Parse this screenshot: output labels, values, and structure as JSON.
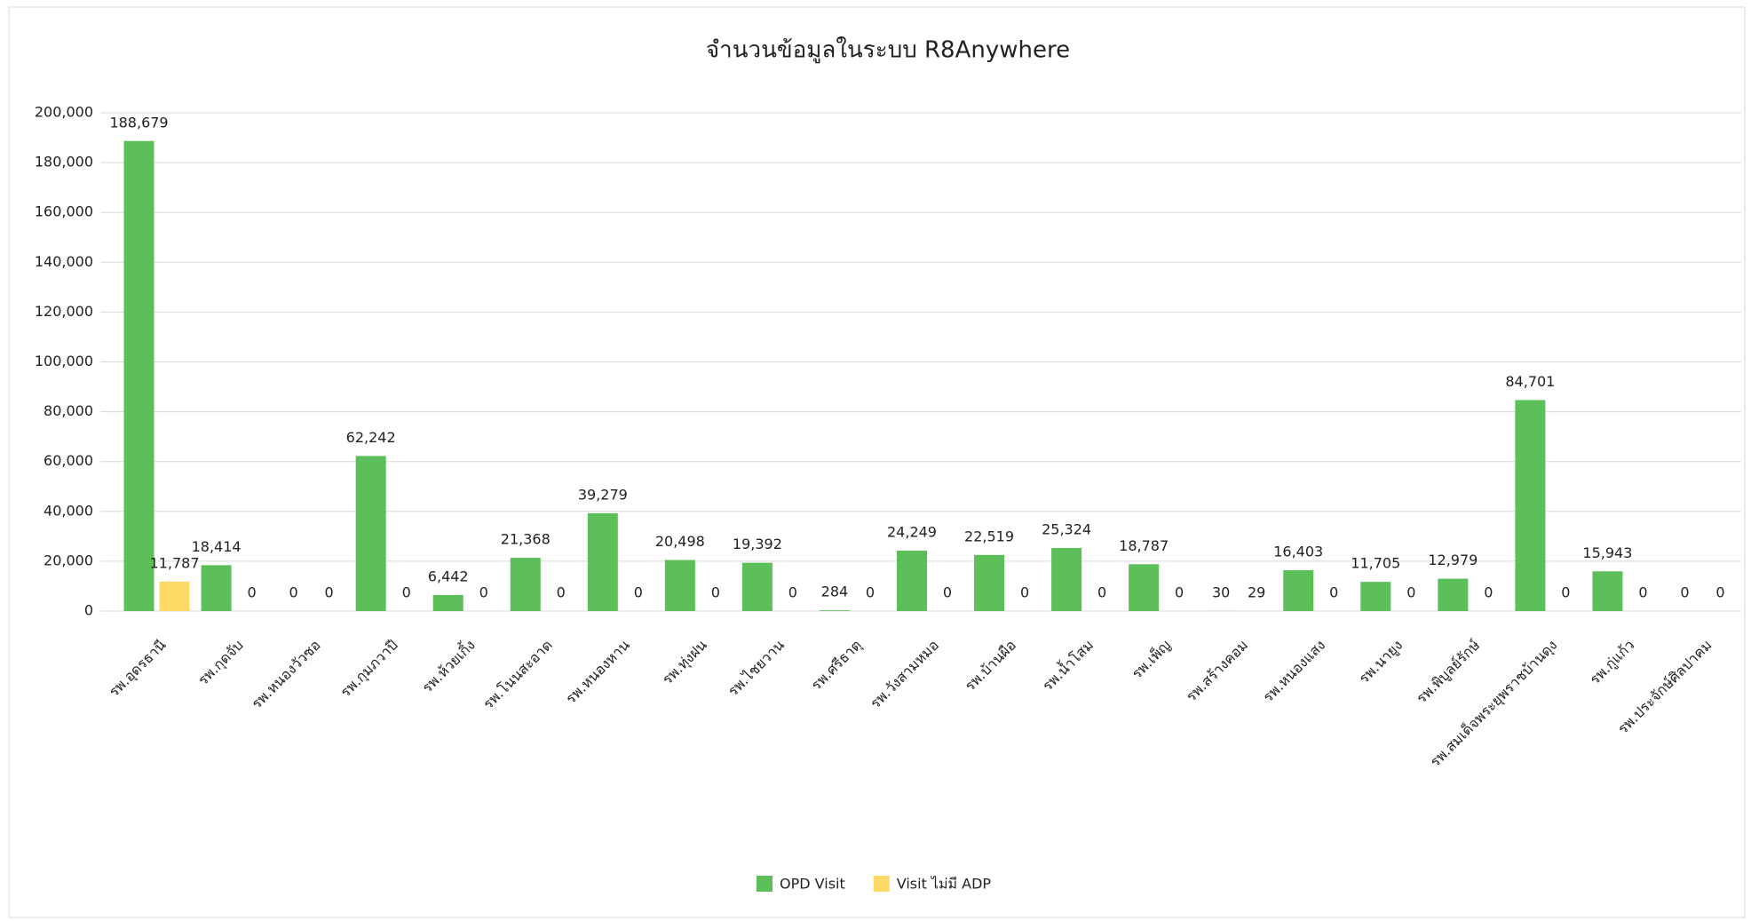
{
  "chart_data": {
    "type": "bar",
    "title": "จำนวนข้อมูลในระบบ R8Anywhere",
    "categories": [
      "รพ.อุดรธานี",
      "รพ.กุดจับ",
      "รพ.หนองวัวซอ",
      "รพ.กุมภวาปี",
      "รพ.ห้วยเกิ้ง",
      "รพ.โนนสะอาด",
      "รพ.หนองหาน",
      "รพ.ทุ่งฝน",
      "รพ.ไชยวาน",
      "รพ.ศรีธาตุ",
      "รพ.วังสามหมอ",
      "รพ.บ้านผือ",
      "รพ.น้ำโสม",
      "รพ.เพ็ญ",
      "รพ.สร้างคอม",
      "รพ.หนองแสง",
      "รพ.นายูง",
      "รพ.พิบูลย์รักษ์",
      "รพ.สมเด็จพระยุพราชบ้านดุง",
      "รพ.กู่แก้ว",
      "รพ.ประจักษ์ศิลปาคม"
    ],
    "series": [
      {
        "name": "OPD Visit",
        "color": "#5cbf5a",
        "values": [
          188679,
          18414,
          0,
          62242,
          6442,
          21368,
          39279,
          20498,
          19392,
          284,
          24249,
          22519,
          25324,
          18787,
          30,
          16403,
          11705,
          12979,
          84701,
          15943,
          0
        ],
        "value_labels": [
          "188,679",
          "18,414",
          "0",
          "62,242",
          "6,442",
          "21,368",
          "39,279",
          "20,498",
          "19,392",
          "284",
          "24,249",
          "22,519",
          "25,324",
          "18,787",
          "30",
          "16,403",
          "11,705",
          "12,979",
          "84,701",
          "15,943",
          "0"
        ]
      },
      {
        "name": "Visit ไม่มี ADP",
        "color": "#ffd966",
        "values": [
          11787,
          0,
          0,
          0,
          0,
          0,
          0,
          0,
          0,
          0,
          0,
          0,
          0,
          0,
          29,
          0,
          0,
          0,
          0,
          0,
          0
        ],
        "value_labels": [
          "11,787",
          "0",
          "0",
          "0",
          "0",
          "0",
          "0",
          "0",
          "0",
          "0",
          "0",
          "0",
          "0",
          "0",
          "29",
          "0",
          "0",
          "0",
          "0",
          "0",
          "0"
        ]
      }
    ],
    "ylim": [
      0,
      200000
    ],
    "yticks": [
      {
        "value": 0,
        "label": "0"
      },
      {
        "value": 20000,
        "label": "20,000"
      },
      {
        "value": 40000,
        "label": "40,000"
      },
      {
        "value": 60000,
        "label": "60,000"
      },
      {
        "value": 80000,
        "label": "80,000"
      },
      {
        "value": 100000,
        "label": "100,000"
      },
      {
        "value": 120000,
        "label": "120,000"
      },
      {
        "value": 140000,
        "label": "140,000"
      },
      {
        "value": 160000,
        "label": "160,000"
      },
      {
        "value": 180000,
        "label": "180,000"
      },
      {
        "value": 200000,
        "label": "200,000"
      }
    ],
    "grid": true,
    "legend": "bottom"
  }
}
